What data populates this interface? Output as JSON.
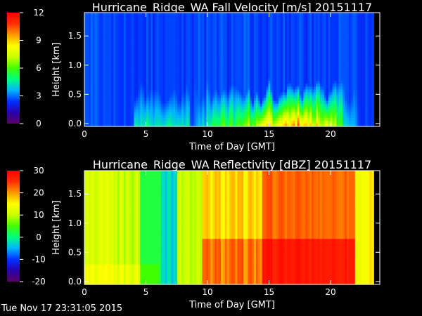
{
  "footer_timestamp": "Tue Nov 17 23:31:05 2015",
  "colors": {
    "colormap": [
      "#5a0063",
      "#2a00b0",
      "#0030ff",
      "#00b4ff",
      "#00ff80",
      "#40ff00",
      "#c8ff00",
      "#ffff00",
      "#ff9a00",
      "#ff3000",
      "#ff0000"
    ],
    "background": "#000000",
    "axis": "#ffffff"
  },
  "chart_data": [
    {
      "type": "heatmap",
      "title": "Hurricane_Ridge_WA Fall Velocity [m/s] 20151117",
      "xlabel": "Time of Day [GMT]",
      "ylabel": "Height [km]",
      "xlim": [
        0,
        24
      ],
      "ylim": [
        -0.05,
        1.9
      ],
      "xticks": [
        0,
        5,
        10,
        15,
        20
      ],
      "yticks": [
        "0.0",
        "0.5",
        "1.0",
        "1.5"
      ],
      "colorbar": {
        "range": [
          0,
          12
        ],
        "ticks": [
          "0",
          "3",
          "6",
          "9",
          "12"
        ]
      },
      "data_end_hour": 23.5
    },
    {
      "type": "heatmap",
      "title": "Hurricane_Ridge_WA Reflectivity [dBZ] 20151117",
      "xlabel": "Time of Day [GMT]",
      "ylabel": "Height [km]",
      "xlim": [
        0,
        24
      ],
      "ylim": [
        -0.05,
        1.9
      ],
      "xticks": [
        0,
        5,
        10,
        15,
        20
      ],
      "yticks": [
        "0.0",
        "0.5",
        "1.0",
        "1.5"
      ],
      "colorbar": {
        "range": [
          -20,
          30
        ],
        "ticks": [
          "-20",
          "-10",
          "0",
          "10",
          "20",
          "30"
        ]
      },
      "data_end_hour": 23.5
    }
  ]
}
